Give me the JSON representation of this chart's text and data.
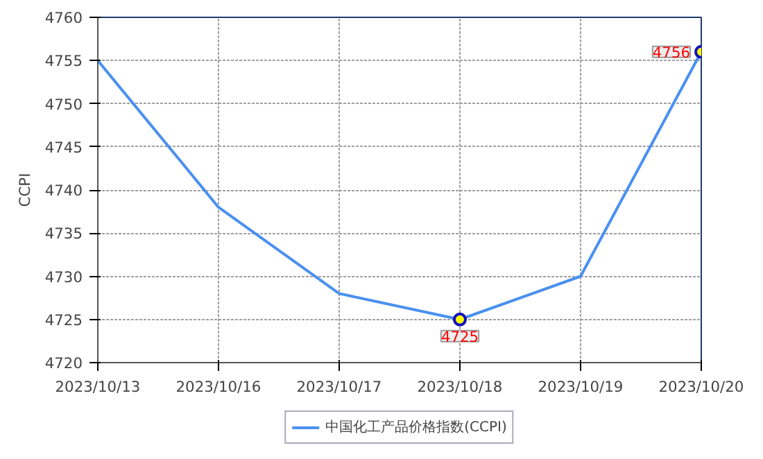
{
  "chart_data": {
    "type": "line",
    "ylabel": "CCPI",
    "categories": [
      "2023/10/13",
      "2023/10/16",
      "2023/10/17",
      "2023/10/18",
      "2023/10/19",
      "2023/10/20"
    ],
    "series": [
      {
        "name": "中国化工产品价格指数(CCPI)",
        "color": "#4a90f0",
        "values": [
          4755,
          4738,
          4728,
          4725,
          4730,
          4756
        ],
        "value_labels": [
          null,
          null,
          null,
          "4725",
          null,
          "4756"
        ]
      }
    ],
    "ylim": [
      4720,
      4760
    ],
    "yticks": [
      4720,
      4725,
      4730,
      4735,
      4740,
      4745,
      4750,
      4755,
      4760
    ],
    "grid": true,
    "legend": "bottom",
    "line_style": "solid"
  }
}
